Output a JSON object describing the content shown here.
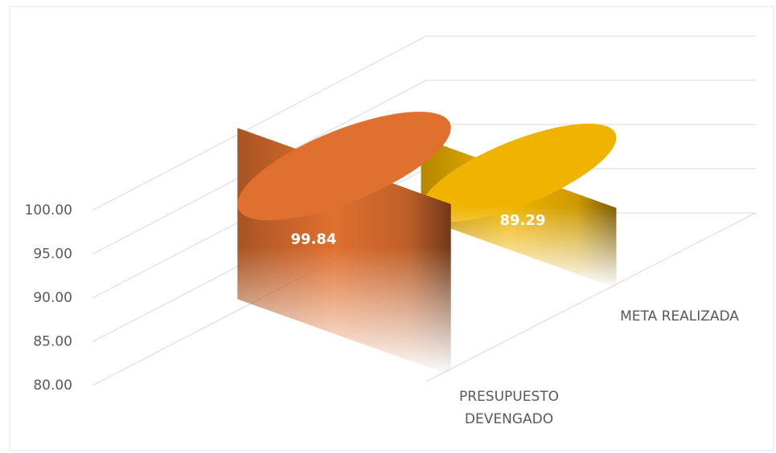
{
  "chart_data": {
    "type": "bar3d",
    "categories": [
      "PRESUPUESTO DEVENGADO",
      "META REALIZADA"
    ],
    "series": [
      {
        "name": null,
        "values": [
          99.84,
          89.29
        ],
        "colors": [
          "#e07030",
          "#f0b400"
        ]
      }
    ],
    "ylim": [
      80,
      100
    ],
    "yticks": [
      {
        "value": 80,
        "label": "80.00"
      },
      {
        "value": 85,
        "label": "85.00"
      },
      {
        "value": 90,
        "label": "90.00"
      },
      {
        "value": 95,
        "label": "95.00"
      },
      {
        "value": 100,
        "label": "100.00"
      }
    ],
    "grid": true
  }
}
